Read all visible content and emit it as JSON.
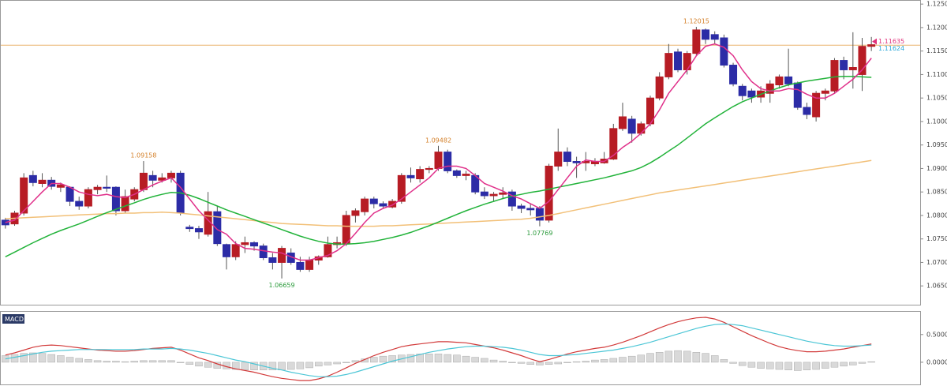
{
  "chart_data": [
    {
      "type": "candlestick",
      "ylim": [
        1.061,
        1.1257
      ],
      "yticks": [
        {
          "value": 1.065,
          "label": "1.06500"
        },
        {
          "value": 1.07,
          "label": "1.07000"
        },
        {
          "value": 1.075,
          "label": "1.07500"
        },
        {
          "value": 1.08,
          "label": "1.08000"
        },
        {
          "value": 1.085,
          "label": "1.08500"
        },
        {
          "value": 1.09,
          "label": "1.09000"
        },
        {
          "value": 1.095,
          "label": "1.09500"
        },
        {
          "value": 1.1,
          "label": "1.10000"
        },
        {
          "value": 1.105,
          "label": "1.10500"
        },
        {
          "value": 1.11,
          "label": "1.11000"
        },
        {
          "value": 1.115,
          "label": "1.11500"
        },
        {
          "value": 1.12,
          "label": "1.12000"
        },
        {
          "value": 1.125,
          "label": "1.12500"
        }
      ],
      "up_color": "#b71c24",
      "down_color": "#2c2ca6",
      "open": [
        1.079,
        1.0782,
        1.0805,
        1.0885,
        1.0868,
        1.0875,
        1.086,
        1.086,
        1.083,
        1.082,
        1.0855,
        1.086,
        1.086,
        1.081,
        1.0835,
        1.0855,
        1.0885,
        1.0875,
        1.088,
        1.089,
        1.0775,
        1.0772,
        1.076,
        1.0808,
        1.0738,
        1.0712,
        1.0738,
        1.0742,
        1.0735,
        1.071,
        1.07,
        1.072,
        1.07,
        1.0685,
        1.0705,
        1.0712,
        1.0738,
        1.074,
        1.08,
        1.0808,
        1.0835,
        1.0825,
        1.0818,
        1.083,
        1.0885,
        1.0878,
        1.0898,
        1.09,
        1.0935,
        1.0895,
        1.0885,
        1.0885,
        1.085,
        1.0842,
        1.0845,
        1.085,
        1.082,
        1.0815,
        1.0815,
        1.079,
        1.0905,
        1.0935,
        1.0915,
        1.0912,
        1.091,
        1.0912,
        1.092,
        1.0985,
        1.1005,
        1.0975,
        1.0995,
        1.105,
        1.1095,
        1.1148,
        1.111,
        1.1145,
        1.1195,
        1.1185,
        1.1178,
        1.112,
        1.1075,
        1.1065,
        1.1052,
        1.106,
        1.1078,
        1.1095,
        1.1082,
        1.103,
        1.101,
        1.106,
        1.1065,
        1.113,
        1.111,
        1.11,
        1.116
      ],
      "high": [
        1.0795,
        1.081,
        1.089,
        1.0895,
        1.089,
        1.0882,
        1.087,
        1.0862,
        1.084,
        1.086,
        1.0865,
        1.0885,
        1.0862,
        1.0855,
        1.086,
        1.09158,
        1.0895,
        1.089,
        1.0895,
        1.0895,
        1.078,
        1.0778,
        1.085,
        1.082,
        1.074,
        1.0745,
        1.0755,
        1.0745,
        1.074,
        1.072,
        1.0735,
        1.073,
        1.0712,
        1.0712,
        1.0715,
        1.0755,
        1.0755,
        1.081,
        1.0815,
        1.084,
        1.084,
        1.083,
        1.0835,
        1.089,
        1.0902,
        1.0905,
        1.0905,
        1.09482,
        1.094,
        1.0898,
        1.0895,
        1.089,
        1.086,
        1.085,
        1.086,
        1.0855,
        1.0825,
        1.0825,
        1.082,
        1.091,
        1.0985,
        1.0945,
        1.0925,
        1.0935,
        1.0922,
        1.0935,
        1.0995,
        1.104,
        1.1012,
        1.1,
        1.1055,
        1.1105,
        1.1165,
        1.1155,
        1.115,
        1.12015,
        1.1198,
        1.1192,
        1.1185,
        1.1125,
        1.108,
        1.107,
        1.1075,
        1.1088,
        1.11,
        1.1155,
        1.1085,
        1.104,
        1.1065,
        1.107,
        1.1135,
        1.1138,
        1.119,
        1.1178,
        1.118
      ],
      "low": [
        1.0772,
        1.0778,
        1.08,
        1.0862,
        1.086,
        1.0855,
        1.085,
        1.082,
        1.0812,
        1.0815,
        1.0845,
        1.085,
        1.08,
        1.0805,
        1.083,
        1.085,
        1.086,
        1.087,
        1.087,
        1.08,
        1.0765,
        1.075,
        1.0755,
        1.0735,
        1.0685,
        1.0705,
        1.072,
        1.0725,
        1.0705,
        1.0685,
        1.06659,
        1.0695,
        1.068,
        1.068,
        1.0695,
        1.071,
        1.073,
        1.0735,
        1.0785,
        1.08,
        1.0815,
        1.0815,
        1.0815,
        1.0825,
        1.087,
        1.087,
        1.089,
        1.0895,
        1.089,
        1.088,
        1.0875,
        1.0845,
        1.0835,
        1.083,
        1.0835,
        1.081,
        1.0805,
        1.08,
        1.07769,
        1.0785,
        1.0895,
        1.0905,
        1.088,
        1.0895,
        1.0905,
        1.091,
        1.0918,
        1.098,
        1.0955,
        1.097,
        1.099,
        1.1045,
        1.109,
        1.1105,
        1.11,
        1.114,
        1.1165,
        1.1165,
        1.1115,
        1.1075,
        1.1045,
        1.104,
        1.104,
        1.104,
        1.107,
        1.1075,
        1.1025,
        1.1005,
        1.1,
        1.1045,
        1.106,
        1.109,
        1.107,
        1.1065,
        1.115
      ],
      "close": [
        1.078,
        1.0805,
        1.088,
        1.087,
        1.0875,
        1.0862,
        1.0865,
        1.083,
        1.082,
        1.0855,
        1.086,
        1.0858,
        1.081,
        1.084,
        1.0855,
        1.089,
        1.0875,
        1.088,
        1.089,
        1.0805,
        1.0772,
        1.0765,
        1.0808,
        1.074,
        1.0712,
        1.0738,
        1.0742,
        1.0735,
        1.071,
        1.07,
        1.073,
        1.07,
        1.0685,
        1.0705,
        1.0712,
        1.0738,
        1.0742,
        1.08,
        1.081,
        1.0835,
        1.0825,
        1.082,
        1.083,
        1.0885,
        1.088,
        1.0898,
        1.09,
        1.0935,
        1.0895,
        1.0885,
        1.0888,
        1.085,
        1.0842,
        1.0845,
        1.0848,
        1.082,
        1.0815,
        1.0812,
        1.079,
        1.0905,
        1.0935,
        1.0915,
        1.0912,
        1.0915,
        1.0915,
        1.092,
        1.0985,
        1.101,
        1.0975,
        1.0995,
        1.105,
        1.1095,
        1.1145,
        1.111,
        1.1145,
        1.1195,
        1.1175,
        1.1175,
        1.112,
        1.108,
        1.1055,
        1.1052,
        1.1065,
        1.108,
        1.1095,
        1.108,
        1.103,
        1.1015,
        1.106,
        1.1065,
        1.113,
        1.111,
        1.1115,
        1.116,
        1.11635
      ],
      "overlays": [
        {
          "color": "#f2c078",
          "values": [
            1.0793,
            1.0794,
            1.0795,
            1.0796,
            1.0797,
            1.0798,
            1.0799,
            1.08,
            1.0801,
            1.0802,
            1.0803,
            1.0804,
            1.0804,
            1.0805,
            1.0805,
            1.0806,
            1.0806,
            1.0807,
            1.0806,
            1.0805,
            1.0803,
            1.0801,
            1.0799,
            1.0797,
            1.0795,
            1.0793,
            1.0791,
            1.0789,
            1.0787,
            1.0785,
            1.0783,
            1.0782,
            1.0781,
            1.078,
            1.0779,
            1.0778,
            1.0778,
            1.0777,
            1.0777,
            1.0777,
            1.0777,
            1.0778,
            1.0778,
            1.0779,
            1.078,
            1.0781,
            1.0782,
            1.0783,
            1.0784,
            1.0785,
            1.0786,
            1.0787,
            1.0788,
            1.0789,
            1.079,
            1.0791,
            1.0792,
            1.0794,
            1.0797,
            1.08,
            1.0804,
            1.0808,
            1.0812,
            1.0816,
            1.082,
            1.0824,
            1.0828,
            1.0832,
            1.0836,
            1.084,
            1.0844,
            1.0848,
            1.0851,
            1.0854,
            1.0857,
            1.086,
            1.0863,
            1.0866,
            1.0869,
            1.0872,
            1.0875,
            1.0878,
            1.0881,
            1.0884,
            1.0887,
            1.089,
            1.0893,
            1.0896,
            1.0899,
            1.0902,
            1.0905,
            1.0908,
            1.0911,
            1.0914,
            1.0917
          ]
        },
        {
          "color": "#22b33a",
          "values": [
            1.0712,
            1.0722,
            1.0732,
            1.0742,
            1.0751,
            1.076,
            1.0768,
            1.0775,
            1.0782,
            1.079,
            1.0798,
            1.0806,
            1.0813,
            1.082,
            1.0827,
            1.0834,
            1.084,
            1.0845,
            1.0849,
            1.0848,
            1.0843,
            1.0836,
            1.0828,
            1.082,
            1.0812,
            1.0805,
            1.0798,
            1.0791,
            1.0784,
            1.0777,
            1.077,
            1.0763,
            1.0756,
            1.075,
            1.0745,
            1.0741,
            1.0739,
            1.0739,
            1.074,
            1.0742,
            1.0745,
            1.0749,
            1.0753,
            1.0758,
            1.0764,
            1.0771,
            1.0778,
            1.0786,
            1.0794,
            1.0802,
            1.081,
            1.0817,
            1.0824,
            1.083,
            1.0836,
            1.0841,
            1.0845,
            1.0849,
            1.0852,
            1.0856,
            1.086,
            1.0864,
            1.0868,
            1.0872,
            1.0876,
            1.088,
            1.0885,
            1.089,
            1.0895,
            1.0902,
            1.0912,
            1.0924,
            1.0937,
            1.095,
            1.0965,
            1.098,
            1.0995,
            1.1008,
            1.102,
            1.1032,
            1.1042,
            1.105,
            1.1058,
            1.1065,
            1.1072,
            1.1078,
            1.1082,
            1.1086,
            1.1089,
            1.1092,
            1.1095,
            1.1096,
            1.1096,
            1.1095,
            1.1094
          ]
        },
        {
          "color": "#e0308a",
          "values": [
            1.0785,
            1.079,
            1.081,
            1.083,
            1.085,
            1.0868,
            1.0868,
            1.086,
            1.085,
            1.0845,
            1.0842,
            1.0845,
            1.084,
            1.0838,
            1.0845,
            1.0855,
            1.0865,
            1.0873,
            1.088,
            1.086,
            1.0835,
            1.081,
            1.079,
            1.077,
            1.076,
            1.074,
            1.073,
            1.0728,
            1.0725,
            1.0722,
            1.072,
            1.0712,
            1.0705,
            1.0705,
            1.071,
            1.0715,
            1.0725,
            1.074,
            1.0762,
            1.0785,
            1.0805,
            1.0815,
            1.0822,
            1.0835,
            1.085,
            1.0865,
            1.088,
            1.09,
            1.0905,
            1.0905,
            1.09,
            1.0885,
            1.0868,
            1.086,
            1.0852,
            1.0842,
            1.0835,
            1.0825,
            1.0815,
            1.083,
            1.0855,
            1.088,
            1.0905,
            1.0918,
            1.0915,
            1.0915,
            1.0928,
            1.0945,
            1.0958,
            1.0975,
            1.0995,
            1.1025,
            1.106,
            1.1085,
            1.111,
            1.114,
            1.116,
            1.1165,
            1.1158,
            1.114,
            1.111,
            1.1085,
            1.107,
            1.1065,
            1.1065,
            1.107,
            1.1068,
            1.1058,
            1.105,
            1.105,
            1.106,
            1.1075,
            1.109,
            1.111,
            1.1135
          ]
        }
      ],
      "price_line": {
        "value": 1.11624,
        "color": "#eab36c"
      },
      "price_labels": [
        {
          "value": 1.11635,
          "label": "1.11635",
          "color": "#e0307a"
        },
        {
          "value": 1.11624,
          "label": "1.11624",
          "color": "#2aa6d8"
        }
      ],
      "annotations": [
        {
          "label": "1.09158",
          "value": 1.09158,
          "x": 15,
          "color": "#d4802a",
          "position": "above"
        },
        {
          "label": "1.09482",
          "value": 1.09482,
          "x": 47,
          "color": "#d4802a",
          "position": "above"
        },
        {
          "label": "1.12015",
          "value": 1.12015,
          "x": 75,
          "color": "#d4802a",
          "position": "above"
        },
        {
          "label": "1.06659",
          "value": 1.06659,
          "x": 30,
          "color": "#2a9a3a",
          "position": "below"
        },
        {
          "label": "1.07769",
          "value": 1.07769,
          "x": 58,
          "color": "#2a9a3a",
          "position": "below"
        }
      ]
    },
    {
      "type": "macd",
      "label": "MACD",
      "ylim": [
        -0.4,
        0.91
      ],
      "yticks": [
        {
          "value": 0,
          "label": "0.0000"
        },
        {
          "value": 0.5,
          "label": "0.5000"
        }
      ],
      "histogram": {
        "color": "#d9d9d9",
        "values": [
          0.12,
          0.14,
          0.16,
          0.17,
          0.16,
          0.14,
          0.12,
          0.09,
          0.07,
          0.05,
          0.03,
          0.02,
          0.02,
          0.01,
          0.02,
          0.03,
          0.03,
          0.03,
          0.03,
          -0.01,
          -0.04,
          -0.07,
          -0.09,
          -0.11,
          -0.12,
          -0.13,
          -0.14,
          -0.14,
          -0.14,
          -0.14,
          -0.14,
          -0.13,
          -0.12,
          -0.1,
          -0.07,
          -0.05,
          -0.03,
          -0.01,
          0.03,
          0.06,
          0.09,
          0.11,
          0.12,
          0.13,
          0.14,
          0.15,
          0.15,
          0.15,
          0.14,
          0.13,
          0.11,
          0.09,
          0.07,
          0.04,
          0.02,
          -0.01,
          -0.02,
          -0.04,
          -0.05,
          -0.04,
          -0.03,
          -0.01,
          0.01,
          0.02,
          0.04,
          0.05,
          0.07,
          0.09,
          0.11,
          0.13,
          0.16,
          0.18,
          0.2,
          0.21,
          0.2,
          0.18,
          0.16,
          0.12,
          0.05,
          -0.02,
          -0.06,
          -0.09,
          -0.11,
          -0.12,
          -0.13,
          -0.14,
          -0.15,
          -0.14,
          -0.13,
          -0.11,
          -0.09,
          -0.07,
          -0.05,
          -0.02,
          0.01
        ]
      },
      "lines": [
        {
          "color": "#d23a3a",
          "values": [
            0.13,
            0.17,
            0.22,
            0.27,
            0.3,
            0.31,
            0.3,
            0.28,
            0.26,
            0.24,
            0.22,
            0.21,
            0.2,
            0.2,
            0.21,
            0.23,
            0.25,
            0.26,
            0.27,
            0.22,
            0.15,
            0.08,
            0.03,
            -0.03,
            -0.08,
            -0.12,
            -0.15,
            -0.18,
            -0.22,
            -0.26,
            -0.29,
            -0.31,
            -0.33,
            -0.33,
            -0.3,
            -0.25,
            -0.18,
            -0.1,
            -0.02,
            0.05,
            0.12,
            0.18,
            0.23,
            0.28,
            0.31,
            0.33,
            0.35,
            0.37,
            0.37,
            0.36,
            0.35,
            0.32,
            0.29,
            0.26,
            0.22,
            0.17,
            0.12,
            0.06,
            0.01,
            0.05,
            0.1,
            0.15,
            0.19,
            0.22,
            0.25,
            0.27,
            0.31,
            0.36,
            0.42,
            0.48,
            0.55,
            0.62,
            0.68,
            0.73,
            0.77,
            0.8,
            0.81,
            0.78,
            0.72,
            0.64,
            0.56,
            0.48,
            0.41,
            0.34,
            0.28,
            0.24,
            0.21,
            0.19,
            0.19,
            0.2,
            0.22,
            0.24,
            0.27,
            0.3,
            0.33
          ]
        },
        {
          "color": "#4cc6d6",
          "values": [
            0.06,
            0.09,
            0.12,
            0.15,
            0.18,
            0.2,
            0.21,
            0.22,
            0.23,
            0.23,
            0.23,
            0.23,
            0.23,
            0.23,
            0.23,
            0.24,
            0.24,
            0.24,
            0.25,
            0.24,
            0.22,
            0.19,
            0.16,
            0.12,
            0.08,
            0.04,
            0.01,
            -0.03,
            -0.07,
            -0.11,
            -0.14,
            -0.18,
            -0.21,
            -0.24,
            -0.26,
            -0.26,
            -0.25,
            -0.22,
            -0.18,
            -0.13,
            -0.08,
            -0.03,
            0.02,
            0.06,
            0.1,
            0.14,
            0.18,
            0.21,
            0.24,
            0.26,
            0.28,
            0.29,
            0.29,
            0.28,
            0.27,
            0.25,
            0.22,
            0.18,
            0.14,
            0.12,
            0.12,
            0.13,
            0.14,
            0.16,
            0.18,
            0.2,
            0.22,
            0.25,
            0.28,
            0.32,
            0.36,
            0.41,
            0.46,
            0.51,
            0.56,
            0.61,
            0.65,
            0.68,
            0.69,
            0.68,
            0.66,
            0.62,
            0.58,
            0.54,
            0.5,
            0.46,
            0.42,
            0.38,
            0.35,
            0.32,
            0.3,
            0.29,
            0.29,
            0.3,
            0.31
          ]
        }
      ]
    }
  ]
}
